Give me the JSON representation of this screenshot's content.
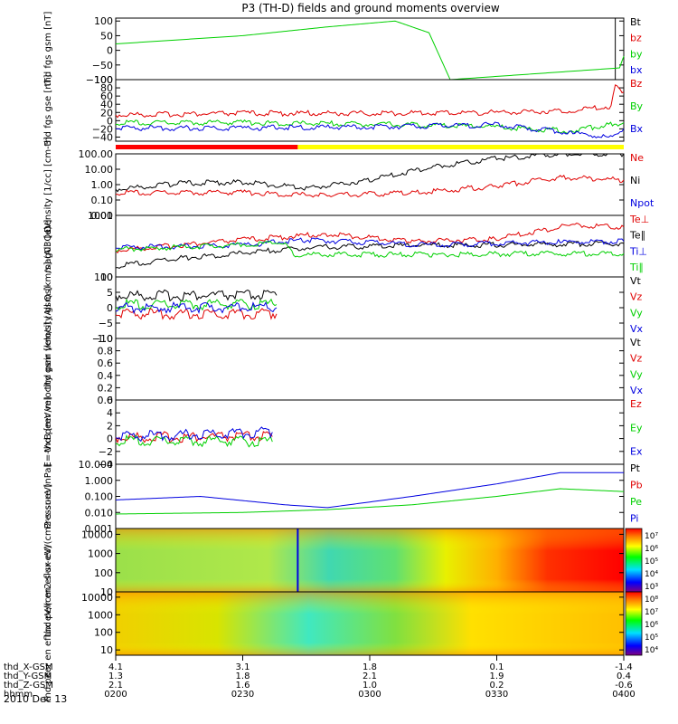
{
  "title": "P3 (TH-D) fields and ground moments overview",
  "colors": {
    "black": "#000000",
    "red": "#e00000",
    "green": "#00d000",
    "blue": "#0000e0",
    "yellow": "#ffff00"
  },
  "date_label": "2010 Dec 13",
  "time_axis": {
    "range": [
      "02:00",
      "04:00"
    ],
    "rows": [
      {
        "label": "thd_X-GSM",
        "values": [
          "4.1",
          "3.1",
          "1.8",
          "0.1",
          "-1.4"
        ]
      },
      {
        "label": "thd_Y-GSM",
        "values": [
          "1.3",
          "1.8",
          "2.1",
          "1.9",
          "0.4"
        ]
      },
      {
        "label": "thd_Z-GSM",
        "values": [
          "2.1",
          "1.6",
          "1.0",
          "0.2",
          "-0.6"
        ]
      },
      {
        "label": "hhmm",
        "values": [
          "0200",
          "0230",
          "0300",
          "0330",
          "0400"
        ]
      }
    ]
  },
  "chart_data": [
    {
      "type": "line",
      "ylabel": "thd fgs gsm [nT]",
      "scale": "linear",
      "ylim": [
        -100,
        110
      ],
      "ticks": [
        "100",
        "50",
        "0",
        "−50",
        "−100"
      ],
      "legend": [
        "Bt",
        "bz",
        "by",
        "bx"
      ],
      "series": [
        {
          "name": "Bt",
          "color": "#000000",
          "x": [
            "03:58",
            "03:58"
          ],
          "values": [
            -100,
            110
          ]
        },
        {
          "name": "by",
          "color": "#00d000",
          "x": [
            "02:00",
            "02:30",
            "02:50",
            "03:06",
            "03:14",
            "03:19",
            "03:59",
            "04:00"
          ],
          "values": [
            22,
            50,
            80,
            100,
            60,
            -100,
            -60,
            -20
          ]
        },
        {
          "name": "bx",
          "color": "#0000e0",
          "x": [
            "02:00",
            "04:00"
          ],
          "values": [
            -100,
            -100
          ]
        }
      ]
    },
    {
      "type": "line",
      "ylabel": "thd fgs gse [nT]",
      "scale": "linear",
      "ylim": [
        -50,
        100
      ],
      "ticks": [
        "100",
        "80",
        "60",
        "40",
        "20",
        "0",
        "−20",
        "−40"
      ],
      "legend": [
        "Bz",
        "By",
        "Bx"
      ],
      "series": [
        {
          "name": "Bz",
          "color": "#e00000",
          "x": [
            "02:00",
            "02:30",
            "03:00",
            "03:30",
            "03:48",
            "03:57",
            "03:58",
            "04:00"
          ],
          "values": [
            14,
            18,
            18,
            20,
            25,
            35,
            90,
            70
          ]
        },
        {
          "name": "By",
          "color": "#00d000",
          "x": [
            "02:00",
            "02:30",
            "03:00",
            "03:30",
            "03:48",
            "03:56",
            "04:00"
          ],
          "values": [
            -5,
            -5,
            -8,
            -15,
            -25,
            -10,
            -5
          ]
        },
        {
          "name": "Bx",
          "color": "#0000e0",
          "x": [
            "02:00",
            "02:30",
            "03:00",
            "03:30",
            "03:48",
            "03:56",
            "04:00"
          ],
          "values": [
            -18,
            -18,
            -15,
            -10,
            -30,
            -40,
            -20
          ]
        }
      ]
    },
    {
      "type": "line",
      "ylabel": "Density [1/cc] [cm-3]",
      "scale": "log",
      "ylim": [
        0.01,
        100
      ],
      "ticks": [
        "100.00",
        "10.00",
        "1.00",
        "0.10",
        "0.01"
      ],
      "legend": [
        "Ne",
        "Ni",
        "Npot"
      ],
      "series": [
        {
          "name": "Ni",
          "color": "#000000",
          "x": [
            "02:00",
            "02:15",
            "02:30",
            "02:45",
            "03:00",
            "03:15",
            "03:30",
            "03:45",
            "04:00"
          ],
          "values": [
            0.5,
            1.2,
            1.5,
            0.6,
            2,
            15,
            50,
            100,
            100
          ]
        },
        {
          "name": "Ne",
          "color": "#e00000",
          "x": [
            "02:00",
            "02:30",
            "02:50",
            "03:10",
            "03:30",
            "03:45",
            "04:00"
          ],
          "values": [
            0.3,
            0.3,
            0.2,
            0.3,
            0.8,
            3,
            2
          ]
        }
      ]
    },
    {
      "type": "line",
      "ylabel": "mag03 [eV]",
      "scale": "log",
      "ylim": [
        100,
        1000
      ],
      "ticks": [
        "1000",
        "100"
      ],
      "legend": [
        "Te⊥",
        "Te∥",
        "Ti⊥",
        "Ti∥"
      ],
      "series": [
        {
          "name": "Te⊥",
          "color": "#e00000",
          "x": [
            "02:00",
            "02:30",
            "02:50",
            "03:10",
            "03:30",
            "03:48",
            "04:00"
          ],
          "values": [
            270,
            400,
            500,
            380,
            420,
            700,
            650
          ]
        },
        {
          "name": "Te∥",
          "color": "#000000",
          "x": [
            "02:00",
            "02:15",
            "02:45",
            "03:15",
            "03:45",
            "04:00"
          ],
          "values": [
            150,
            200,
            300,
            330,
            340,
            350
          ]
        },
        {
          "name": "Ti⊥",
          "color": "#0000e0",
          "x": [
            "02:00",
            "02:30",
            "02:45",
            "03:15",
            "03:45",
            "04:00"
          ],
          "values": [
            300,
            330,
            400,
            330,
            370,
            380
          ]
        },
        {
          "name": "Ti∥",
          "color": "#00d000",
          "x": [
            "02:00",
            "02:30",
            "02:40",
            "02:42",
            "03:15",
            "03:45",
            "04:00"
          ],
          "values": [
            280,
            330,
            360,
            230,
            230,
            240,
            240
          ]
        }
      ]
    },
    {
      "type": "line",
      "ylabel": "thd peir velocity gsm [km/s] (All Qs)",
      "scale": "linear",
      "ylim": [
        -10,
        10
      ],
      "ticks": [
        "10",
        "5",
        "0",
        "−5",
        "−10"
      ],
      "legend": [
        "Vt",
        "Vz",
        "Vy",
        "Vx"
      ],
      "series": [
        {
          "name": "Vt",
          "color": "#000000",
          "x": [
            "02:00",
            "02:38"
          ],
          "values": [
            4,
            4
          ]
        },
        {
          "name": "Vy",
          "color": "#00d000",
          "x": [
            "02:00",
            "02:38"
          ],
          "values": [
            1,
            1
          ]
        },
        {
          "name": "Vz",
          "color": "#e00000",
          "x": [
            "02:00",
            "02:38"
          ],
          "values": [
            -2,
            -2
          ]
        },
        {
          "name": "Vx",
          "color": "#0000e0",
          "x": [
            "02:00",
            "02:38"
          ],
          "values": [
            0,
            0
          ]
        }
      ]
    },
    {
      "type": "line",
      "ylabel": "thd peer velocity gsm [km/s] (All Qs)",
      "scale": "linear",
      "ylim": [
        0,
        1
      ],
      "ticks": [
        "1.0",
        "0.8",
        "0.6",
        "0.4",
        "0.2",
        "0.0"
      ],
      "legend": [
        "Vt",
        "Vz",
        "Vy",
        "Vx"
      ],
      "series": []
    },
    {
      "type": "line",
      "ylabel": "E=-VxB [mV/m]",
      "scale": "linear",
      "ylim": [
        -4,
        6
      ],
      "ticks": [
        "6",
        "4",
        "2",
        "0",
        "−2",
        "−4"
      ],
      "legend": [
        "Ez",
        "Ey",
        "Ex"
      ],
      "series": [
        {
          "name": "Ez",
          "color": "#e00000",
          "x": [
            "02:00",
            "02:37"
          ],
          "values": [
            0.2,
            0.3
          ]
        },
        {
          "name": "Ey",
          "color": "#00d000",
          "x": [
            "02:00",
            "02:37"
          ],
          "values": [
            -0.3,
            -0.5
          ]
        },
        {
          "name": "Ex",
          "color": "#0000e0",
          "x": [
            "02:00",
            "02:37"
          ],
          "values": [
            0.3,
            1
          ]
        }
      ]
    },
    {
      "type": "line",
      "ylabel": "Pressure [nPa]",
      "scale": "log",
      "ylim": [
        0.001,
        10
      ],
      "ticks": [
        "10.000",
        "1.000",
        "0.100",
        "0.010",
        "0.001"
      ],
      "legend": [
        "Pt",
        "Pb",
        "Pe",
        "Pi"
      ],
      "series": [
        {
          "name": "Pi",
          "color": "#0000e0",
          "x": [
            "02:00",
            "02:20",
            "02:40",
            "02:50",
            "03:10",
            "03:30",
            "03:45",
            "04:00"
          ],
          "values": [
            0.06,
            0.1,
            0.03,
            0.02,
            0.1,
            0.6,
            3,
            3
          ]
        },
        {
          "name": "Pe",
          "color": "#00d000",
          "x": [
            "02:00",
            "02:30",
            "02:50",
            "03:10",
            "03:30",
            "03:45",
            "04:00"
          ],
          "values": [
            0.008,
            0.01,
            0.015,
            0.03,
            0.1,
            0.3,
            0.2
          ]
        }
      ]
    },
    {
      "type": "heatmap",
      "ylabel": "thd peir en eflux eV/(cm2-s-sr-eV)",
      "scale": "log",
      "ylim": [
        10,
        20000
      ],
      "ticks": [
        "10000",
        "1000",
        "100",
        "10"
      ],
      "colorbar_labels": [
        "10⁷",
        "10⁶",
        "10⁵",
        "10⁴",
        "10³"
      ]
    },
    {
      "type": "heatmap",
      "ylabel": "thd peer en eflux eV/(cm2-s-sr-eV)",
      "scale": "log",
      "ylim": [
        5,
        20000
      ],
      "ticks": [
        "10000",
        "1000",
        "100",
        "10"
      ],
      "colorbar_labels": [
        "10⁸",
        "10⁷",
        "10⁶",
        "10⁵",
        "10⁴"
      ]
    }
  ]
}
